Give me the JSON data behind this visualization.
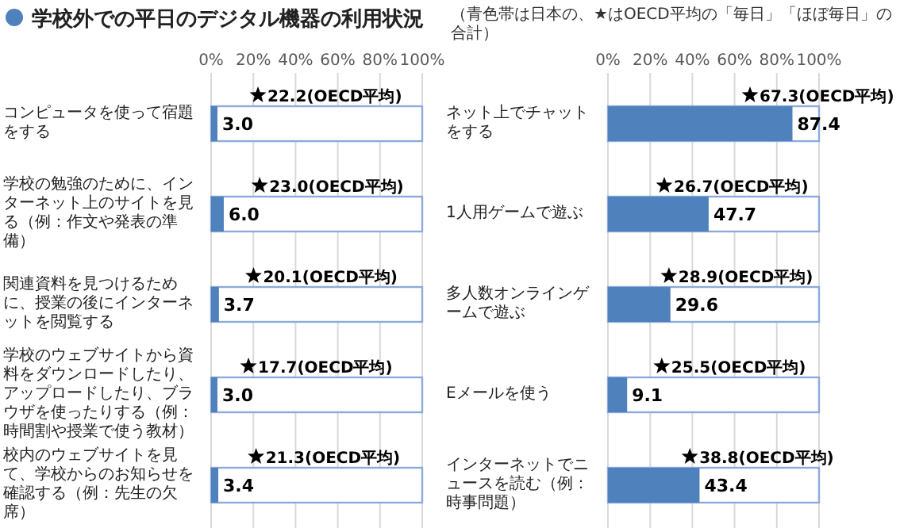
{
  "chart_data": [
    {
      "type": "bar",
      "orientation": "horizontal",
      "title": "学校外での平日のデジタル機器の利用状況",
      "categories": [
        "コンピュータを使って宿題をする",
        "学校の勉強のために、インターネット上のサイトを見る（例：作文や発表の準備）",
        "関連資料を見つけるために、授業の後にインターネットを閲覧する",
        "学校のウェブサイトから資料をダウンロードしたり、アップロードしたり、ブラウザを使ったりする（例：時間割や授業で使う教材）",
        "校内のウェブサイトを見て、学校からのお知らせを確認する（例：先生の欠席）"
      ],
      "series": [
        {
          "color": "#4f81bd",
          "values": [
            3.0,
            6.0,
            3.7,
            3.0,
            3.4
          ],
          "value_labels": [
            "3.0",
            "6.0",
            "3.7",
            "3.0",
            "3.4"
          ]
        },
        {
          "type": "scatter",
          "marker": "star",
          "color": "#000000",
          "values": [
            22.2,
            23.0,
            20.1,
            17.7,
            21.3
          ],
          "value_labels": [
            "22.2(OECD平均)",
            "23.0(OECD平均)",
            "20.1(OECD平均)",
            "17.7(OECD平均)",
            "21.3(OECD平均)"
          ]
        }
      ],
      "xlim": [
        0,
        100
      ],
      "xticks": [
        {
          "value": 0,
          "label": "0%"
        },
        {
          "value": 20,
          "label": "20%"
        },
        {
          "value": 40,
          "label": "40%"
        },
        {
          "value": 60,
          "label": "60%"
        },
        {
          "value": 80,
          "label": "80%"
        },
        {
          "value": 100,
          "label": "100%"
        }
      ],
      "grid": "x"
    },
    {
      "type": "bar",
      "orientation": "horizontal",
      "subtitle": "（青色帯は日本の、★はOECD平均の「毎日」「ほぼ毎日」の合計）",
      "categories": [
        "ネット上でチャットをする",
        "1人用ゲームで遊ぶ",
        "多人数オンラインゲームで遊ぶ",
        "Eメールを使う",
        "インターネットでニュースを読む（例：時事問題）"
      ],
      "series": [
        {
          "color": "#4f81bd",
          "values": [
            87.4,
            47.7,
            29.6,
            9.1,
            43.4
          ],
          "value_labels": [
            "87.4",
            "47.7",
            "29.6",
            "9.1",
            "43.4"
          ]
        },
        {
          "type": "scatter",
          "marker": "star",
          "color": "#000000",
          "values": [
            67.3,
            26.7,
            28.9,
            25.5,
            38.8
          ],
          "value_labels": [
            "67.3(OECD平均)",
            "26.7(OECD平均)",
            "28.9(OECD平均)",
            "25.5(OECD平均)",
            "38.8(OECD平均)"
          ]
        }
      ],
      "xlim": [
        0,
        100
      ],
      "xticks": [
        {
          "value": 0,
          "label": "0%"
        },
        {
          "value": 20,
          "label": "20%"
        },
        {
          "value": 40,
          "label": "40%"
        },
        {
          "value": 60,
          "label": "60%"
        },
        {
          "value": 80,
          "label": "80%"
        },
        {
          "value": 100,
          "label": "100%"
        }
      ],
      "grid": "x"
    }
  ]
}
